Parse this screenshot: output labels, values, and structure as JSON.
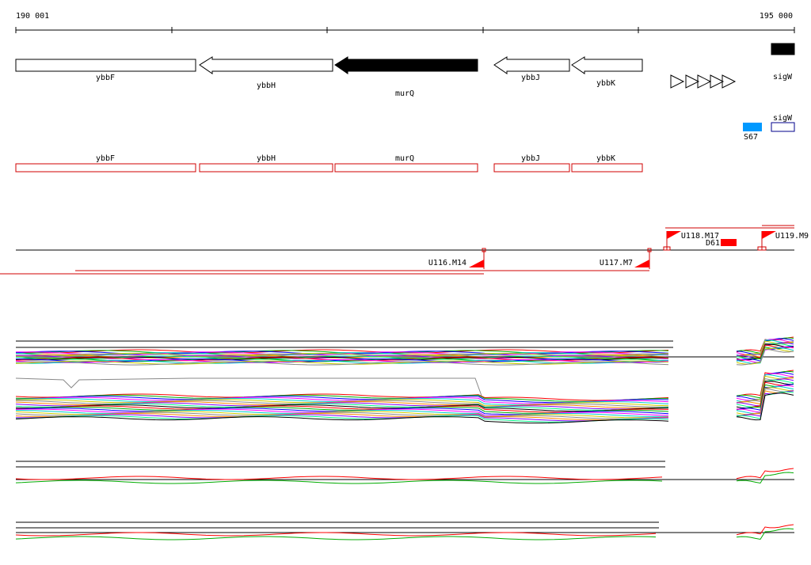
{
  "ruler": {
    "start": "190 001",
    "end": "195 000"
  },
  "genes": [
    "ybbF",
    "ybbH",
    "murQ",
    "ybbJ",
    "ybbK",
    "sigW"
  ],
  "features": {
    "sigW": "sigW",
    "S67": "S67"
  },
  "annotated_genes": [
    "ybbF",
    "ybbH",
    "murQ",
    "ybbJ",
    "ybbK"
  ],
  "transcripts": [
    "U116.M14",
    "U117.M7",
    "U118.M17",
    "U119.M9",
    "D61"
  ]
}
